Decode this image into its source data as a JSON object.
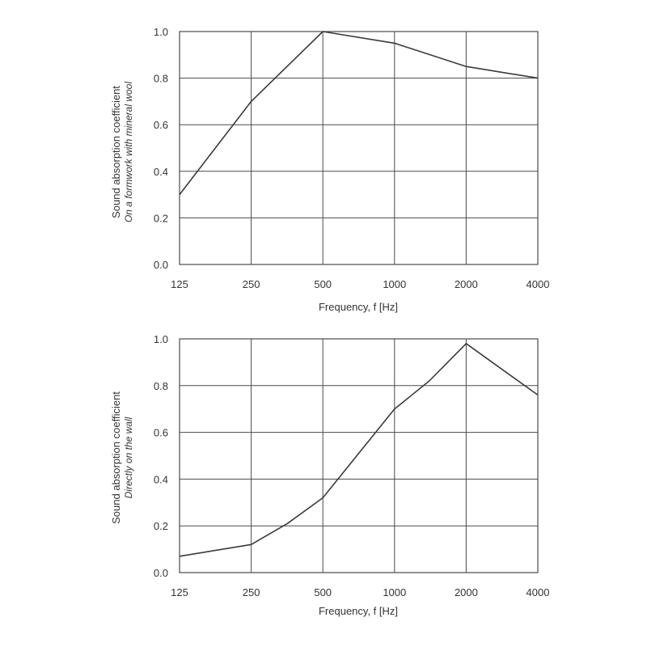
{
  "chart_data": [
    {
      "type": "line",
      "xlabel": "Frequency, f [Hz]",
      "ylabel": "Sound absorption coefficient",
      "ylabel_sub": "On a formwork with mineral wool",
      "x_ticks": [
        "125",
        "250",
        "500",
        "1000",
        "2000",
        "4000"
      ],
      "y_ticks": [
        "0.0",
        "0.2",
        "0.4",
        "0.6",
        "0.8",
        "1.0"
      ],
      "x_scale": "log",
      "ylim": [
        0,
        1.0
      ],
      "grid": true,
      "x": [
        125,
        250,
        500,
        1000,
        2000,
        4000
      ],
      "y": [
        0.3,
        0.7,
        1.0,
        0.95,
        0.85,
        0.8
      ]
    },
    {
      "type": "line",
      "xlabel": "Frequency, f [Hz]",
      "ylabel": "Sound absorption coefficient",
      "ylabel_sub": "Directly on the wall",
      "x_ticks": [
        "125",
        "250",
        "500",
        "1000",
        "2000",
        "4000"
      ],
      "y_ticks": [
        "0.0",
        "0.2",
        "0.4",
        "0.6",
        "0.8",
        "1.0"
      ],
      "x_scale": "log",
      "ylim": [
        0,
        1.0
      ],
      "grid": true,
      "x": [
        125,
        250,
        355,
        500,
        1000,
        1400,
        2000,
        4000
      ],
      "y": [
        0.07,
        0.12,
        0.21,
        0.32,
        0.7,
        0.82,
        0.98,
        0.76
      ]
    }
  ],
  "colors": {
    "line": "#3a3a3a",
    "grid": "#4a4a4a",
    "text": "#333333",
    "background": "#ffffff"
  }
}
